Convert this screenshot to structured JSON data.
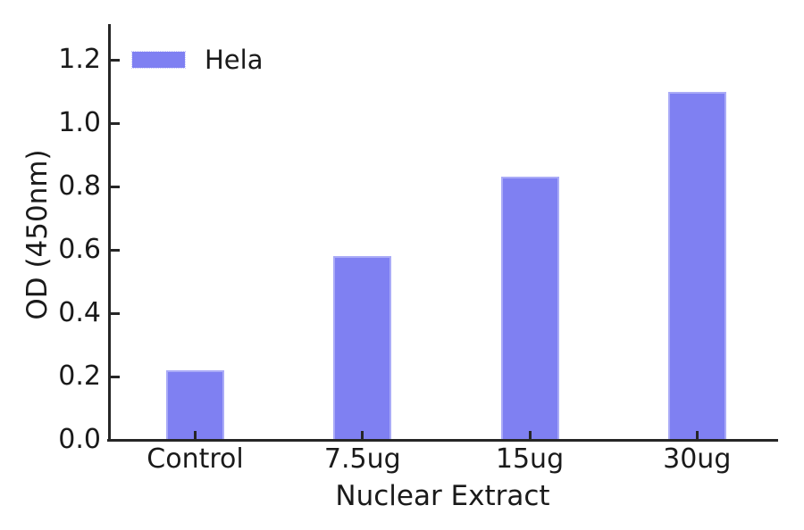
{
  "chart_data": {
    "type": "bar",
    "title": "",
    "categories": [
      "Control",
      "7.5ug",
      "15ug",
      "30ug"
    ],
    "series": [
      {
        "name": "Hela",
        "values": [
          0.22,
          0.58,
          0.83,
          1.1
        ]
      }
    ],
    "xlabel": "Nuclear Extract",
    "ylabel": "OD (450nm)",
    "ylim": [
      0,
      1.31
    ],
    "yticks": [
      "0.0",
      "0.2",
      "0.4",
      "0.6",
      "0.8",
      "1.0",
      "1.2"
    ],
    "grid": false,
    "legend": {
      "position": "upper-left",
      "entries": [
        {
          "label": "Hela",
          "swatch_color": "#7f80f2"
        }
      ]
    },
    "colors": {
      "bar_fill": "#7f80f2",
      "bar_edge": "#aaabf7",
      "axis": "#262626",
      "text": "#1a1a1a",
      "background": "#ffffff"
    }
  }
}
